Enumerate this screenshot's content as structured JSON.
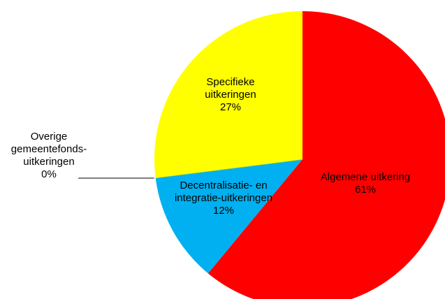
{
  "chart_data": {
    "type": "pie",
    "categories": [
      "Algemene  uitkering",
      "Decentralisatie- en\nintegratie-uitkeringen",
      "Overige\ngemeentefonds-\nuitkeringen",
      "Specifieke\nuitkeringen"
    ],
    "values": [
      61,
      12,
      0,
      27
    ],
    "value_labels": [
      "61%",
      "12%",
      "0%",
      "27%"
    ],
    "colors": [
      "#ff0000",
      "#00b0f0",
      "#92d050",
      "#ffff00"
    ]
  }
}
